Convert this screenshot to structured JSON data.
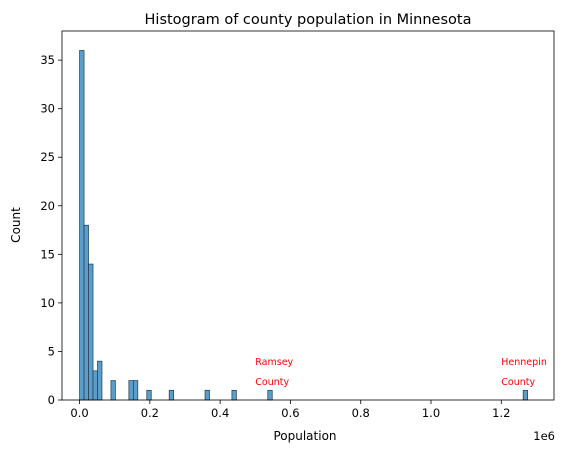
{
  "chart_data": {
    "type": "bar",
    "title": "Histogram of county population in Minnesota",
    "xlabel": "Population",
    "ylabel": "Count",
    "x_offset_label": "1e6",
    "xlim": [
      -50000,
      1350000
    ],
    "ylim": [
      0,
      38
    ],
    "x_ticks": [
      0,
      200000,
      400000,
      600000,
      800000,
      1000000,
      1200000
    ],
    "x_tick_labels": [
      "0.0",
      "0.2",
      "0.4",
      "0.6",
      "0.8",
      "1.0",
      "1.2"
    ],
    "y_ticks": [
      0,
      5,
      10,
      15,
      20,
      25,
      30,
      35
    ],
    "y_tick_labels": [
      "0",
      "5",
      "10",
      "15",
      "20",
      "25",
      "30",
      "35"
    ],
    "bin_width": 12750,
    "bins": [
      {
        "start": 0,
        "count": 36
      },
      {
        "start": 12750,
        "count": 18
      },
      {
        "start": 25500,
        "count": 14
      },
      {
        "start": 38250,
        "count": 3
      },
      {
        "start": 51000,
        "count": 4
      },
      {
        "start": 89250,
        "count": 2
      },
      {
        "start": 140250,
        "count": 2
      },
      {
        "start": 153000,
        "count": 2
      },
      {
        "start": 191250,
        "count": 1
      },
      {
        "start": 255000,
        "count": 1
      },
      {
        "start": 357000,
        "count": 1
      },
      {
        "start": 433500,
        "count": 1
      },
      {
        "start": 535500,
        "count": 1
      },
      {
        "start": 1262250,
        "count": 1
      }
    ],
    "annotations": [
      {
        "lines": [
          "Ramsey",
          "County"
        ],
        "x": 500000,
        "y": 3.6
      },
      {
        "lines": [
          "Hennepin",
          "County"
        ],
        "x": 1200000,
        "y": 3.6
      }
    ],
    "bar_color": "#5b9ec9",
    "bar_edge_color": "#1f3b57",
    "annotation_color": "#ff0000",
    "grid": false
  }
}
